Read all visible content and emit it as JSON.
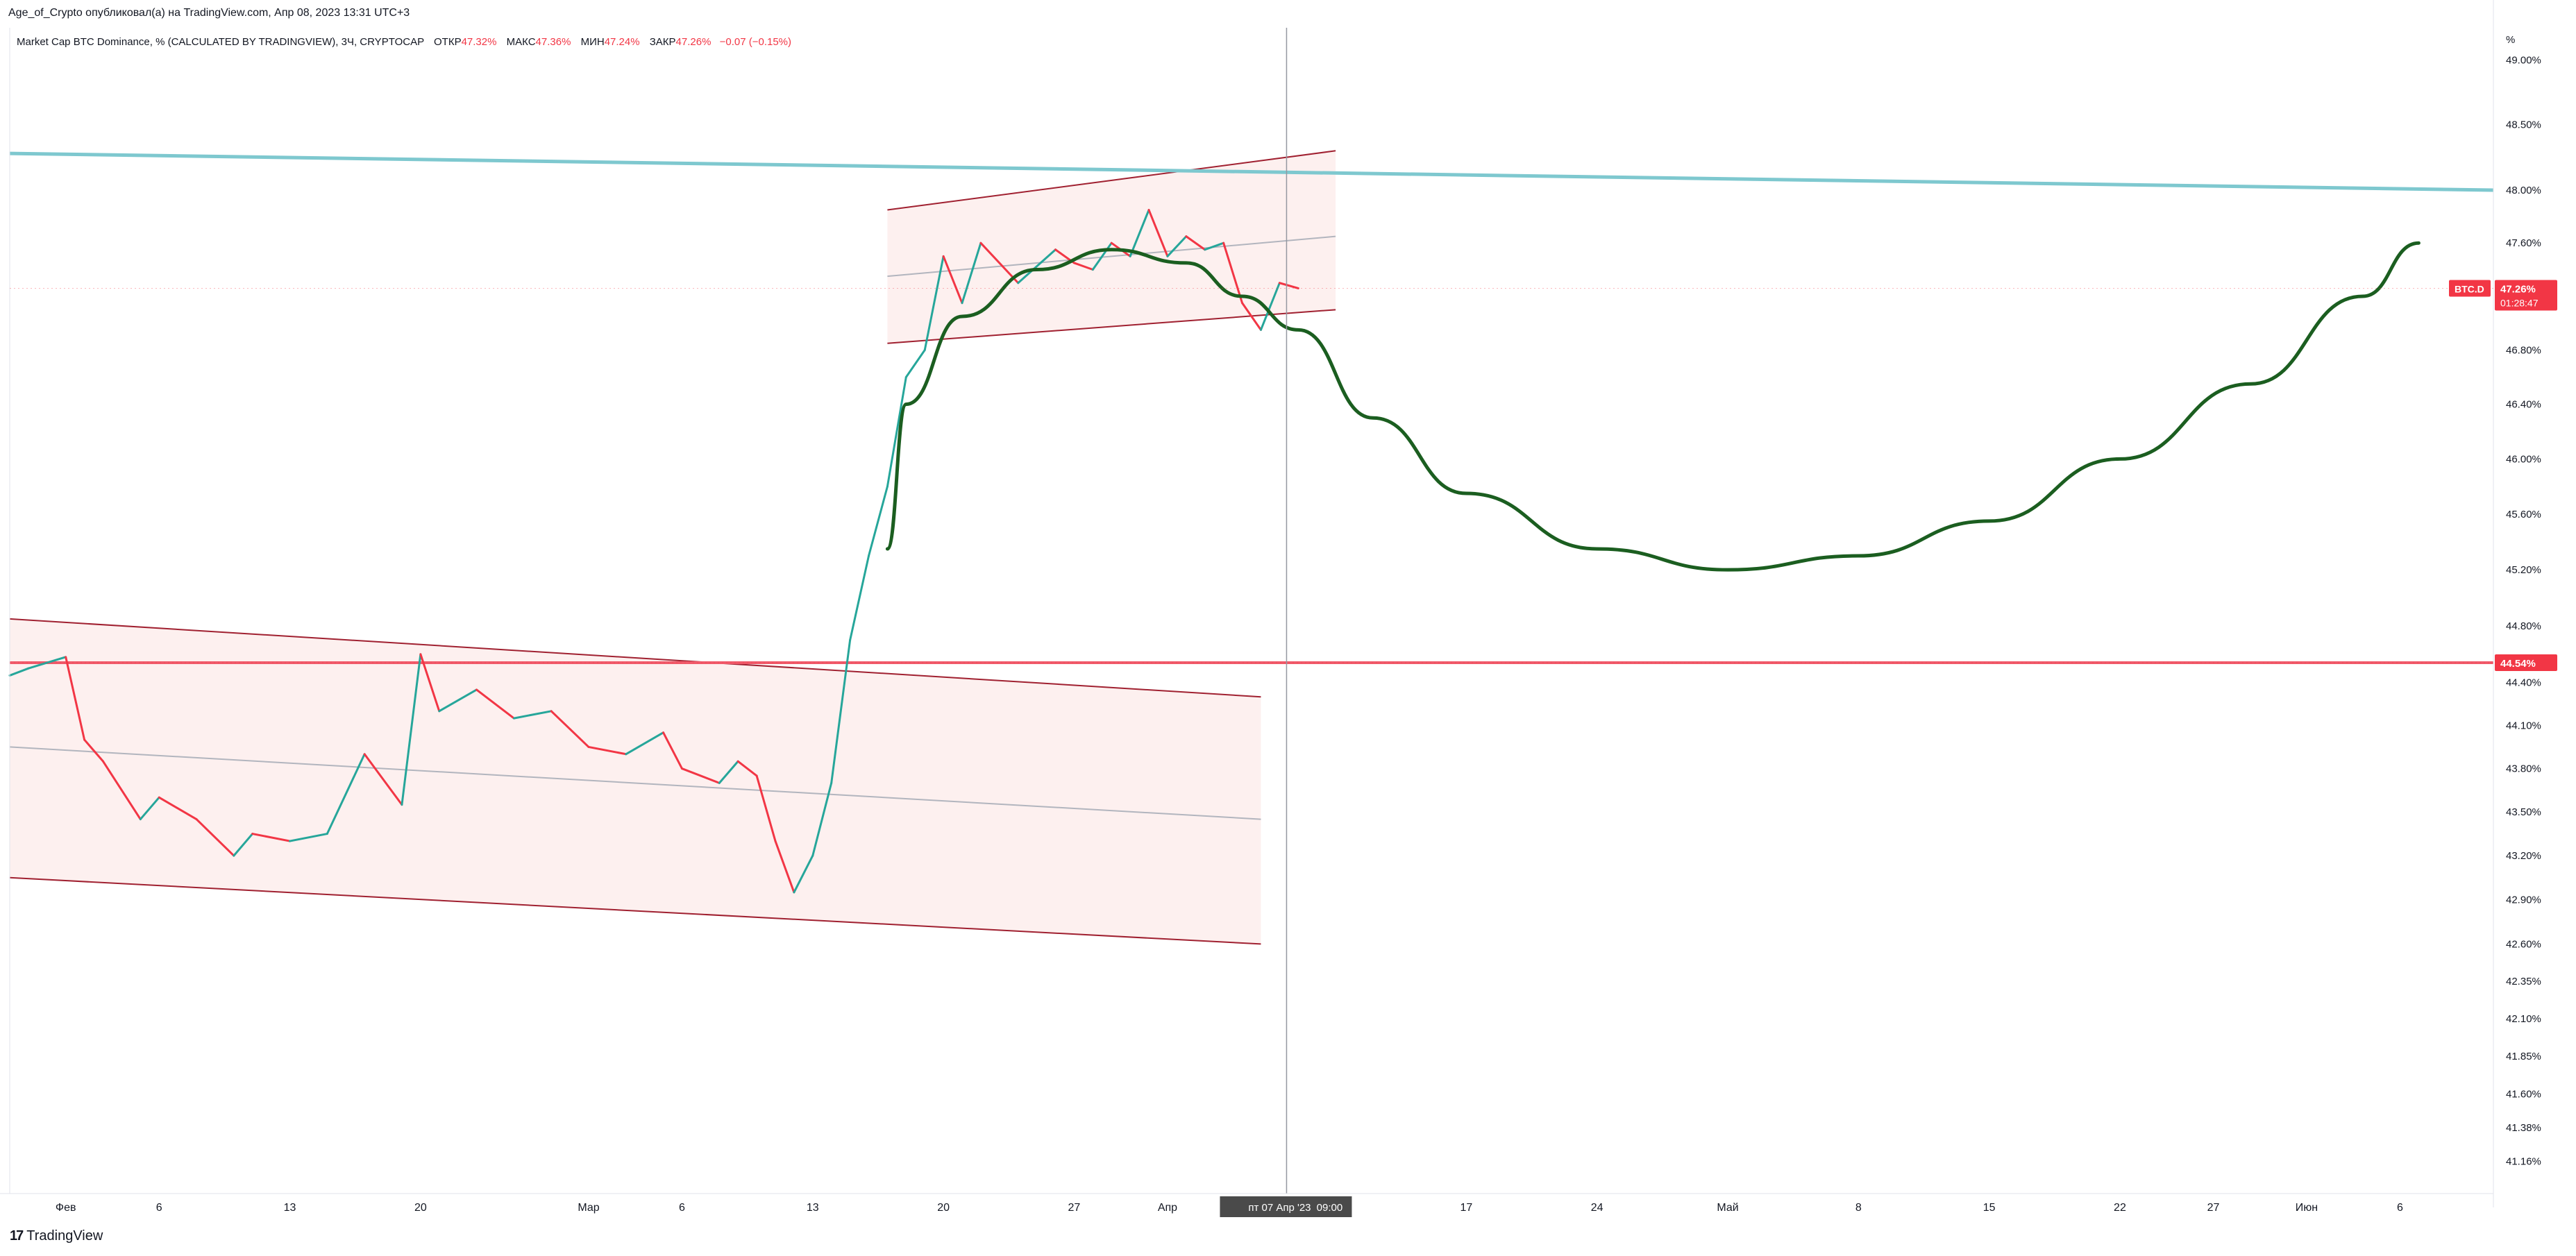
{
  "header": {
    "publish_line": "Age_of_Crypto опубликовал(а) на TradingView.com, Апр 08, 2023 13:31 UTC+3"
  },
  "legend": {
    "symbol_line": "Market Cap BTC Dominance, % (CALCULATED BY TRADINGVIEW), 3Ч, CRYPTOCAP",
    "open_label": "ОТКР",
    "open_value": "47.32%",
    "high_label": "МАКС",
    "high_value": "47.36%",
    "low_label": "МИН",
    "low_value": "47.24%",
    "close_label": "ЗАКР",
    "close_value": "47.26%",
    "change_value": "−0.07 (−0.15%)"
  },
  "footer": {
    "brand": "TradingView",
    "brand_mark": "17"
  },
  "colors": {
    "up": "#26a69a",
    "down": "#f23645",
    "channel_line": "#a02030",
    "channel_fill": "#fdf0ef",
    "mid_line": "#b2b5be",
    "resistance": "#7ec8cf",
    "support": "#f05a6a",
    "forecast": "#1b5e20",
    "axis_text": "#131722"
  },
  "chart_data": {
    "type": "line",
    "title": "Market Cap BTC Dominance, % (CALCULATED BY TRADINGVIEW), 3Ч, CRYPTOCAP",
    "timeframe": "3Ч",
    "ylabel": "%",
    "ylim": [
      40.95,
      49.25
    ],
    "y_scale": "log",
    "x_range": [
      "2023-01-29",
      "2023-06-11"
    ],
    "y_ticks": [
      "49.00%",
      "48.50%",
      "48.00%",
      "47.60%",
      "46.80%",
      "46.40%",
      "46.00%",
      "45.60%",
      "45.20%",
      "44.80%",
      "44.40%",
      "44.10%",
      "43.80%",
      "43.50%",
      "43.20%",
      "42.90%",
      "42.60%",
      "42.35%",
      "42.10%",
      "41.85%",
      "41.60%",
      "41.38%",
      "41.16%"
    ],
    "y_tick_values": [
      49.0,
      48.5,
      48.0,
      47.6,
      46.8,
      46.4,
      46.0,
      45.6,
      45.2,
      44.8,
      44.4,
      44.1,
      43.8,
      43.5,
      43.2,
      42.9,
      42.6,
      42.35,
      42.1,
      41.85,
      41.6,
      41.38,
      41.16
    ],
    "x_ticks": [
      {
        "label": "Фев",
        "date": "2023-02-01"
      },
      {
        "label": "6",
        "date": "2023-02-06"
      },
      {
        "label": "13",
        "date": "2023-02-13"
      },
      {
        "label": "20",
        "date": "2023-02-20"
      },
      {
        "label": "Мар",
        "date": "2023-03-01"
      },
      {
        "label": "6",
        "date": "2023-03-06"
      },
      {
        "label": "13",
        "date": "2023-03-13"
      },
      {
        "label": "20",
        "date": "2023-03-20"
      },
      {
        "label": "27",
        "date": "2023-03-27"
      },
      {
        "label": "Апр",
        "date": "2023-04-01"
      },
      {
        "label": "17",
        "date": "2023-04-17"
      },
      {
        "label": "24",
        "date": "2023-04-24"
      },
      {
        "label": "Май",
        "date": "2023-05-01"
      },
      {
        "label": "8",
        "date": "2023-05-08"
      },
      {
        "label": "15",
        "date": "2023-05-15"
      },
      {
        "label": "22",
        "date": "2023-05-22"
      },
      {
        "label": "27",
        "date": "2023-05-27"
      },
      {
        "label": "Июн",
        "date": "2023-06-01"
      },
      {
        "label": "6",
        "date": "2023-06-06"
      }
    ],
    "crosshair": {
      "date": "2023-04-07T09:00",
      "label": "пт 07 Апр '23",
      "time": "09:00"
    },
    "price_labels": [
      {
        "name": "BTC.D",
        "value": 47.26,
        "text": "47.26%",
        "countdown": "01:28:47",
        "color": "#f23645"
      },
      {
        "value": 44.54,
        "text": "44.54%",
        "color": "#f23645"
      }
    ],
    "series": [
      {
        "name": "BTC.D",
        "kind": "close_path",
        "points": [
          [
            "2023-01-29",
            44.45
          ],
          [
            "2023-01-30",
            44.5
          ],
          [
            "2023-02-01",
            44.58
          ],
          [
            "2023-02-02",
            44.0
          ],
          [
            "2023-02-03",
            43.85
          ],
          [
            "2023-02-05",
            43.45
          ],
          [
            "2023-02-06",
            43.6
          ],
          [
            "2023-02-08",
            43.45
          ],
          [
            "2023-02-10",
            43.2
          ],
          [
            "2023-02-11",
            43.35
          ],
          [
            "2023-02-13",
            43.3
          ],
          [
            "2023-02-15",
            43.35
          ],
          [
            "2023-02-17",
            43.9
          ],
          [
            "2023-02-19",
            43.55
          ],
          [
            "2023-02-20",
            44.6
          ],
          [
            "2023-02-21",
            44.2
          ],
          [
            "2023-02-23",
            44.35
          ],
          [
            "2023-02-25",
            44.15
          ],
          [
            "2023-02-27",
            44.2
          ],
          [
            "2023-03-01",
            43.95
          ],
          [
            "2023-03-03",
            43.9
          ],
          [
            "2023-03-05",
            44.05
          ],
          [
            "2023-03-06",
            43.8
          ],
          [
            "2023-03-08",
            43.7
          ],
          [
            "2023-03-09",
            43.85
          ],
          [
            "2023-03-10",
            43.75
          ],
          [
            "2023-03-11",
            43.3
          ],
          [
            "2023-03-12",
            42.95
          ],
          [
            "2023-03-13",
            43.2
          ],
          [
            "2023-03-14",
            43.7
          ],
          [
            "2023-03-15",
            44.7
          ],
          [
            "2023-03-16",
            45.3
          ],
          [
            "2023-03-17",
            45.8
          ],
          [
            "2023-03-18",
            46.6
          ],
          [
            "2023-03-19",
            46.8
          ],
          [
            "2023-03-20",
            47.5
          ],
          [
            "2023-03-21",
            47.15
          ],
          [
            "2023-03-22",
            47.6
          ],
          [
            "2023-03-24",
            47.3
          ],
          [
            "2023-03-26",
            47.55
          ],
          [
            "2023-03-27",
            47.45
          ],
          [
            "2023-03-28",
            47.4
          ],
          [
            "2023-03-29",
            47.6
          ],
          [
            "2023-03-30",
            47.5
          ],
          [
            "2023-03-31",
            47.85
          ],
          [
            "2023-04-01",
            47.5
          ],
          [
            "2023-04-02",
            47.65
          ],
          [
            "2023-04-03",
            47.55
          ],
          [
            "2023-04-04",
            47.6
          ],
          [
            "2023-04-05",
            47.15
          ],
          [
            "2023-04-06",
            46.95
          ],
          [
            "2023-04-07",
            47.3
          ],
          [
            "2023-04-08",
            47.26
          ]
        ]
      },
      {
        "name": "forecast",
        "kind": "curve",
        "points": [
          [
            "2023-03-17",
            45.35
          ],
          [
            "2023-03-18",
            46.4
          ],
          [
            "2023-03-21",
            47.05
          ],
          [
            "2023-03-25",
            47.4
          ],
          [
            "2023-03-29",
            47.55
          ],
          [
            "2023-04-02",
            47.45
          ],
          [
            "2023-04-05",
            47.2
          ],
          [
            "2023-04-08",
            46.95
          ],
          [
            "2023-04-12",
            46.3
          ],
          [
            "2023-04-17",
            45.75
          ],
          [
            "2023-04-24",
            45.35
          ],
          [
            "2023-05-01",
            45.2
          ],
          [
            "2023-05-08",
            45.3
          ],
          [
            "2023-05-15",
            45.55
          ],
          [
            "2023-05-22",
            46.0
          ],
          [
            "2023-05-29",
            46.55
          ],
          [
            "2023-06-04",
            47.2
          ],
          [
            "2023-06-07",
            47.6
          ]
        ]
      }
    ],
    "trendlines": [
      {
        "name": "resistance",
        "points": [
          [
            "2023-01-29",
            48.28
          ],
          [
            "2023-06-11",
            48.0
          ]
        ],
        "width": 5,
        "color": "#7ec8cf"
      },
      {
        "name": "support",
        "points": [
          [
            "2023-01-29",
            44.54
          ],
          [
            "2023-06-11",
            44.54
          ]
        ],
        "width": 4,
        "color": "#f05a6a"
      }
    ],
    "channels": [
      {
        "name": "descending-channel",
        "start": "2023-01-29",
        "end": "2023-04-06",
        "upper": [
          44.85,
          44.3
        ],
        "mid": [
          43.95,
          43.45
        ],
        "lower": [
          43.05,
          42.6
        ]
      },
      {
        "name": "rising-channel",
        "start": "2023-03-17",
        "end": "2023-04-10",
        "upper": [
          47.85,
          48.3
        ],
        "mid": [
          47.35,
          47.65
        ],
        "lower": [
          46.85,
          47.1
        ]
      }
    ]
  }
}
